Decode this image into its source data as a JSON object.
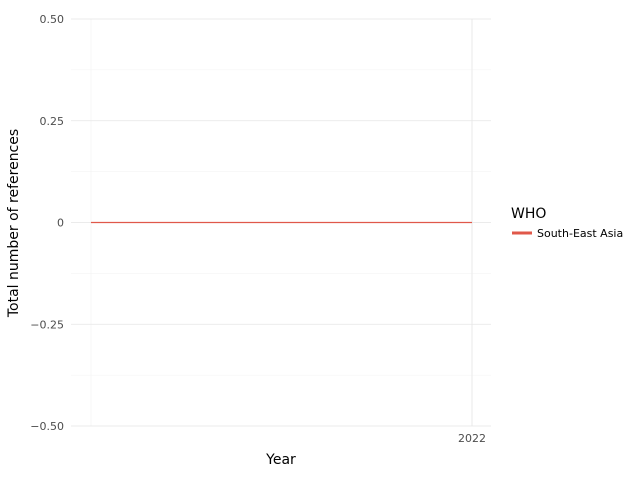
{
  "chart_data": {
    "type": "line",
    "xlabel": "Year",
    "ylabel": "Total number of references",
    "x_tick_labels": [
      "2022"
    ],
    "y_ticks": [
      -0.5,
      -0.25,
      0,
      0.25,
      0.5
    ],
    "y_tick_labels": [
      "−0.50",
      "−0.25",
      "0",
      "0.25",
      "0.50"
    ],
    "ylim": [
      -0.5,
      0.5
    ],
    "grid": true,
    "legend": {
      "title": "WHO",
      "position": "right",
      "entries": [
        "South-East Asia"
      ]
    },
    "series": [
      {
        "name": "South-East Asia",
        "color": "#e0584a",
        "points": [
          {
            "x": "start",
            "y": 0
          },
          {
            "x": "2022",
            "y": 0
          }
        ]
      }
    ]
  }
}
